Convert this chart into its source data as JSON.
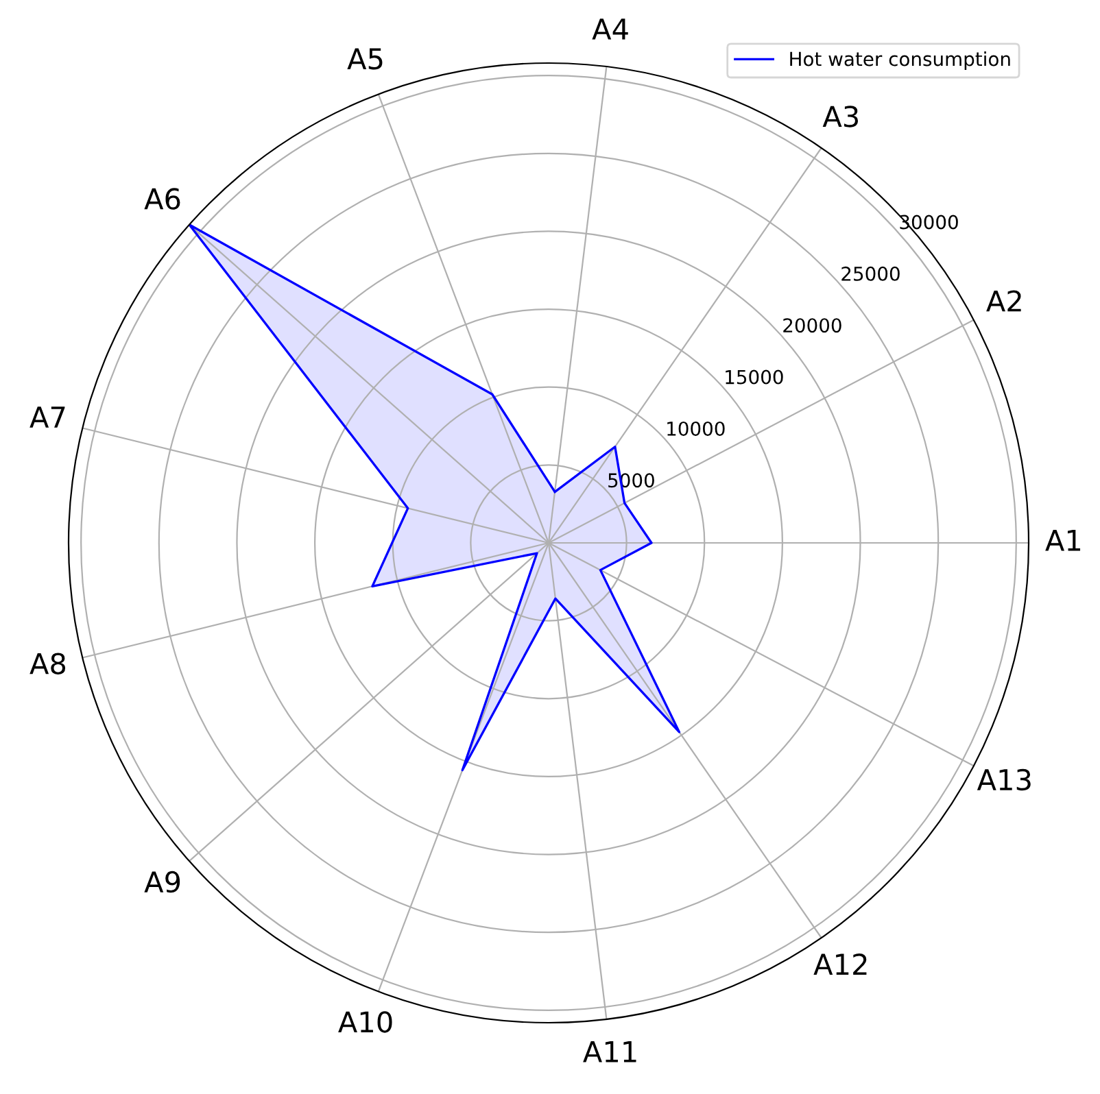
{
  "chart_data": {
    "type": "radar",
    "categories": [
      "A4",
      "A3",
      "A2",
      "A1",
      "A13",
      "A12",
      "A11",
      "A10",
      "A9",
      "A8",
      "A7",
      "A6",
      "A5"
    ],
    "series": [
      {
        "name": "Hot water consumption",
        "color": "#0000ff",
        "values": [
          3300,
          7500,
          5500,
          6600,
          3750,
          14750,
          3600,
          15600,
          1000,
          11650,
          9300,
          30800,
          10200
        ]
      }
    ],
    "ylim": [
      0,
      30800
    ],
    "yticks": [
      5000,
      10000,
      15000,
      20000,
      25000,
      30000
    ],
    "grid": true,
    "legend": "top right"
  }
}
